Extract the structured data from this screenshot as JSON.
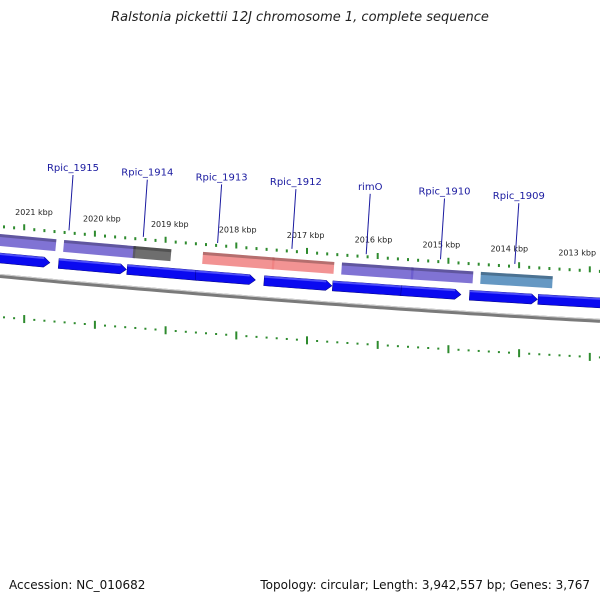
{
  "title": "Ralstonia pickettii 12J chromosome 1, complete sequence",
  "accession": "Accession: NC_010682",
  "summary": "Topology: circular; Length: 3,942,557 bp; Genes: 3,767",
  "colors": {
    "backbone": "#7a7a7a",
    "tick": "#2e8b2e",
    "label": "#1a1aa0",
    "kbp_text": "#222222",
    "cds_strand": "#0a0af0",
    "gene_purple": "#6a5acd",
    "gene_gray": "#555555",
    "gene_pink": "#f08080",
    "gene_blue": "#4a86b8"
  },
  "kbp_labels": [
    "2021 kbp",
    "2020 kbp",
    "2019 kbp",
    "2018 kbp",
    "2017 kbp",
    "2016 kbp",
    "2015 kbp",
    "2014 kbp",
    "2013 kbp"
  ],
  "gene_labels": [
    "Rpic_1915",
    "Rpic_1914",
    "Rpic_1913",
    "Rpic_1912",
    "rimO",
    "Rpic_1910",
    "Rpic_1909"
  ],
  "gene_color_keys": [
    "gene_purple",
    "gene_purple",
    "gene_gray",
    "gene_pink",
    "gene_pink",
    "gene_purple",
    "gene_purple",
    "gene_blue"
  ],
  "cds_count": 9
}
